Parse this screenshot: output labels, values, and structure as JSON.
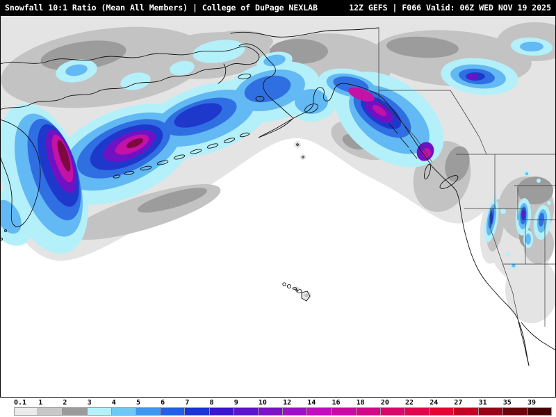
{
  "header": {
    "left": "Snowfall 10:1 Ratio (Mean All Members) | College of DuPage NEXLAB",
    "right": "12Z GEFS | F066 Valid: 06Z WED NOV 19 2025",
    "background": "#000000",
    "text_color": "#ffffff"
  },
  "map": {
    "background": "#ffffff",
    "coastline_color": "#000000"
  },
  "legend": {
    "stops": [
      {
        "label": "0.1",
        "color": "#ebebeb"
      },
      {
        "label": "1",
        "color": "#c8c8c8"
      },
      {
        "label": "2",
        "color": "#9b9b9b"
      },
      {
        "label": "3",
        "color": "#b4f0fa"
      },
      {
        "label": "4",
        "color": "#6cc9f5"
      },
      {
        "label": "5",
        "color": "#3b97ef"
      },
      {
        "label": "6",
        "color": "#2161e0"
      },
      {
        "label": "7",
        "color": "#1b35cf"
      },
      {
        "label": "8",
        "color": "#3a18c8"
      },
      {
        "label": "9",
        "color": "#5b16c6"
      },
      {
        "label": "10",
        "color": "#7c13c4"
      },
      {
        "label": "12",
        "color": "#9d11c2"
      },
      {
        "label": "14",
        "color": "#bd0fc0"
      },
      {
        "label": "16",
        "color": "#c50da6"
      },
      {
        "label": "18",
        "color": "#cc0b88"
      },
      {
        "label": "20",
        "color": "#d40a6a"
      },
      {
        "label": "22",
        "color": "#db084d"
      },
      {
        "label": "24",
        "color": "#e00733"
      },
      {
        "label": "27",
        "color": "#bf0522"
      },
      {
        "label": "31",
        "color": "#970417"
      },
      {
        "label": "35",
        "color": "#6e020d"
      },
      {
        "label": "39",
        "color": "#470105"
      }
    ]
  },
  "chart_data": {
    "type": "heatmap",
    "title": "Snowfall 10:1 Ratio (Mean All Members)",
    "source": "College of DuPage NEXLAB",
    "model": "GEFS",
    "cycle": "12Z",
    "forecast_hour": "F066",
    "valid": "06Z WED NOV 19 2025",
    "scale_values": [
      0.1,
      1,
      2,
      3,
      4,
      5,
      6,
      7,
      8,
      9,
      10,
      12,
      14,
      16,
      18,
      20,
      22,
      24,
      27,
      31,
      35,
      39
    ]
  }
}
